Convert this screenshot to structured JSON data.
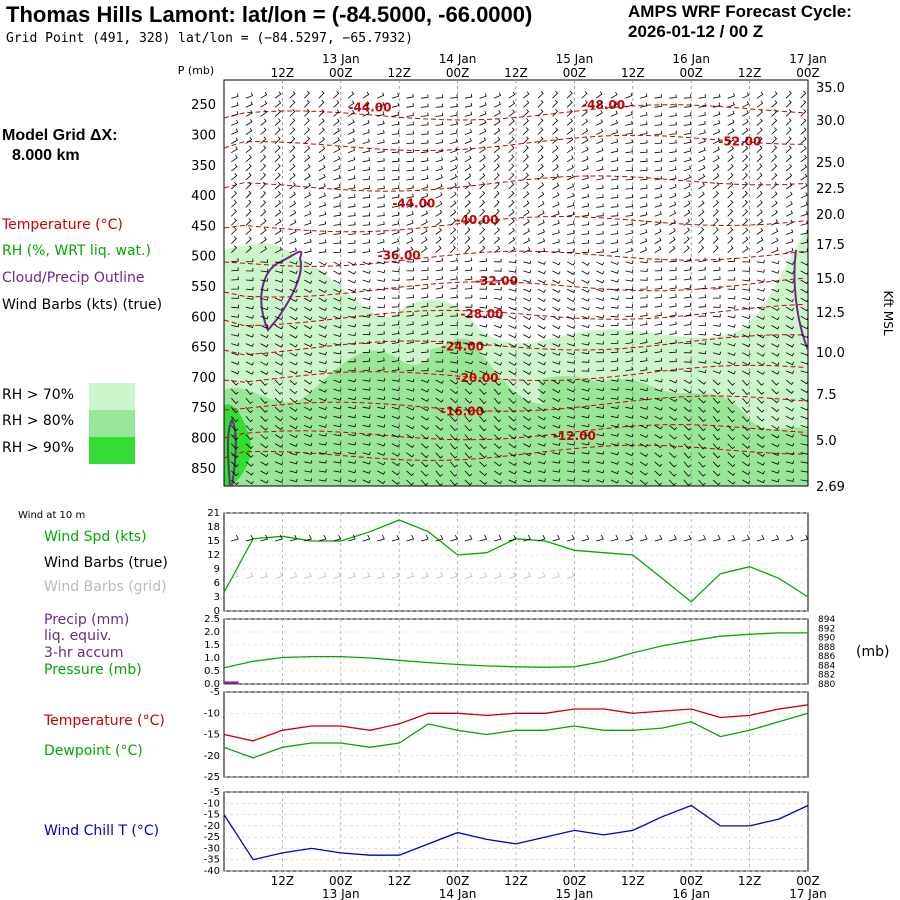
{
  "header": {
    "title": "Thomas Hills Lamont:  lat/lon = (-84.5000, -66.0000)",
    "subtitle": "Grid Point (491, 328) lat/lon = (−84.5297, −65.7932)",
    "cycle_line1": "AMPS WRF Forecast Cycle:",
    "cycle_line2": "2026-01-12 / 00  Z",
    "grid_label": "Model Grid ΔX:",
    "grid_value": "8.000 km"
  },
  "colors": {
    "temperature": "#cc0000",
    "rh": "#00aa00",
    "cloud": "#6a2a8a",
    "wind_chill": "#0000cc",
    "precip": "#6a2a8a",
    "rh70": "#ccf5cc",
    "rh80": "#99e699",
    "rh90": "#33dd33"
  },
  "legend": {
    "temperature": "Temperature (°C)",
    "rh": "RH (%, WRT liq. wat.)",
    "cloud": "Cloud/Precip Outline",
    "wind_barbs": "Wind Barbs (kts) (true)",
    "rh70": "RH > 70%",
    "rh80": "RH > 80%",
    "rh90": "RH > 90%"
  },
  "time_axis": {
    "ticks": [
      "12Z",
      "00Z",
      "12Z",
      "00Z",
      "12Z",
      "00Z",
      "12Z",
      "00Z",
      "12Z",
      "00Z"
    ],
    "dates": [
      "13 Jan",
      "14 Jan",
      "15 Jan",
      "16 Jan",
      "17 Jan"
    ]
  },
  "chart_data": [
    {
      "type": "line",
      "panel": "profile",
      "ylabel": "P (mb)",
      "ylabel_right": "Kft MSL",
      "y_ticks_left": [
        250,
        300,
        350,
        400,
        450,
        500,
        550,
        600,
        650,
        700,
        750,
        800,
        850
      ],
      "y_ticks_right": [
        "35.0",
        "30.0",
        "25.0",
        "22.5",
        "20.0",
        "17.5",
        "15.0",
        "12.5",
        "10.0",
        "7.5",
        "5.0",
        "2.69"
      ],
      "ylim": [
        210,
        880
      ],
      "x_hours": [
        0,
        120
      ],
      "temperature_labels": [
        {
          "text": "-44.00",
          "hour": 30,
          "p": 262
        },
        {
          "text": "-48.00",
          "hour": 78,
          "p": 258
        },
        {
          "text": "-52.00",
          "hour": 106,
          "p": 318
        },
        {
          "text": "-44.00",
          "hour": 39,
          "p": 420
        },
        {
          "text": "-40.00",
          "hour": 52,
          "p": 448
        },
        {
          "text": "-36.00",
          "hour": 36,
          "p": 506
        },
        {
          "text": "-32.00",
          "hour": 56,
          "p": 548
        },
        {
          "text": "-28.00",
          "hour": 53,
          "p": 603
        },
        {
          "text": "-24.00",
          "hour": 49,
          "p": 656
        },
        {
          "text": "-20.00",
          "hour": 52,
          "p": 708
        },
        {
          "text": "-16.00",
          "hour": 49,
          "p": 764
        },
        {
          "text": "-12.00",
          "hour": 72,
          "p": 804
        }
      ]
    },
    {
      "type": "line",
      "panel": "wind10m",
      "title": "Wind at 10 m",
      "series": [
        {
          "name": "Wind Spd (kts)",
          "x": [
            0,
            6,
            12,
            18,
            24,
            30,
            36,
            42,
            48,
            54,
            60,
            66,
            72,
            78,
            84,
            90,
            96,
            102,
            108,
            114,
            120
          ],
          "values": [
            4,
            15.5,
            16,
            15,
            15,
            17,
            19.5,
            17,
            12,
            12.5,
            15.5,
            15,
            13,
            12.5,
            12,
            7,
            2,
            8,
            9.5,
            7,
            3
          ]
        }
      ],
      "legend": [
        "Wind Spd (kts)",
        "Wind Barbs (true)",
        "Wind Barbs (grid)"
      ],
      "y_ticks": [
        0,
        3,
        6,
        9,
        12,
        15,
        18,
        21
      ],
      "ylim": [
        0,
        21
      ]
    },
    {
      "type": "line",
      "panel": "precip_pressure",
      "series": [
        {
          "name": "Pressure (mb)",
          "x": [
            0,
            6,
            12,
            18,
            24,
            30,
            36,
            42,
            48,
            54,
            60,
            66,
            72,
            78,
            84,
            90,
            96,
            102,
            108,
            114,
            120
          ],
          "values": [
            883.5,
            884.9,
            885.7,
            885.9,
            885.9,
            885.6,
            885.1,
            884.6,
            884.2,
            883.9,
            883.7,
            883.6,
            883.7,
            884.9,
            886.7,
            888.2,
            889.3,
            890.3,
            890.7,
            891.0,
            891.0
          ]
        },
        {
          "name": "Precip (mm)",
          "x": [
            0,
            3
          ],
          "values": [
            0.05,
            0.05
          ]
        }
      ],
      "legend": [
        "Precip (mm)",
        "liq. equiv.",
        "3-hr accum",
        "Pressure (mb)"
      ],
      "y_ticks_left": [
        "0.0",
        "0.5",
        "1.0",
        "1.5",
        "2.0",
        "2.5"
      ],
      "y_ticks_right": [
        880,
        882,
        884,
        886,
        888,
        890,
        892,
        894
      ],
      "ylim": [
        0,
        2.5
      ],
      "ylim_right": [
        880,
        894
      ],
      "ylabel_right": "(mb)"
    },
    {
      "type": "line",
      "panel": "temperature",
      "series": [
        {
          "name": "Temperature (°C)",
          "x": [
            0,
            6,
            12,
            18,
            24,
            30,
            36,
            42,
            48,
            54,
            60,
            66,
            72,
            78,
            84,
            90,
            96,
            102,
            108,
            114,
            120
          ],
          "values": [
            -15,
            -16.5,
            -14,
            -13,
            -13,
            -14,
            -12.5,
            -10,
            -10,
            -10.5,
            -10,
            -10,
            -9,
            -9,
            -10,
            -9.5,
            -9,
            -11,
            -10.5,
            -9,
            -8
          ]
        },
        {
          "name": "Dewpoint (°C)",
          "x": [
            0,
            6,
            12,
            18,
            24,
            30,
            36,
            42,
            48,
            54,
            60,
            66,
            72,
            78,
            84,
            90,
            96,
            102,
            108,
            114,
            120
          ],
          "values": [
            -18,
            -20.5,
            -18,
            -17,
            -17,
            -18,
            -17,
            -12.5,
            -14,
            -15,
            -14,
            -14,
            -13,
            -14,
            -14,
            -13.5,
            -12,
            -15.5,
            -14,
            -12,
            -10
          ]
        }
      ],
      "y_ticks": [
        -5,
        -10,
        -15,
        -20,
        -25
      ],
      "ylim": [
        -25,
        -5
      ]
    },
    {
      "type": "line",
      "panel": "wind_chill",
      "series": [
        {
          "name": "Wind Chill T (°C)",
          "x": [
            0,
            6,
            12,
            18,
            24,
            30,
            36,
            42,
            48,
            54,
            60,
            66,
            72,
            78,
            84,
            90,
            96,
            102,
            108,
            114,
            120
          ],
          "values": [
            -15,
            -35,
            -32,
            -30,
            -32,
            -33,
            -33,
            -28,
            -23,
            -26,
            -28,
            -25,
            -22,
            -24,
            -22,
            -16,
            -11,
            -20,
            -20,
            -17,
            -11
          ]
        }
      ],
      "y_ticks": [
        -5,
        -10,
        -15,
        -20,
        -25,
        -30,
        -35,
        -40
      ],
      "ylim": [
        -40,
        -5
      ]
    }
  ]
}
